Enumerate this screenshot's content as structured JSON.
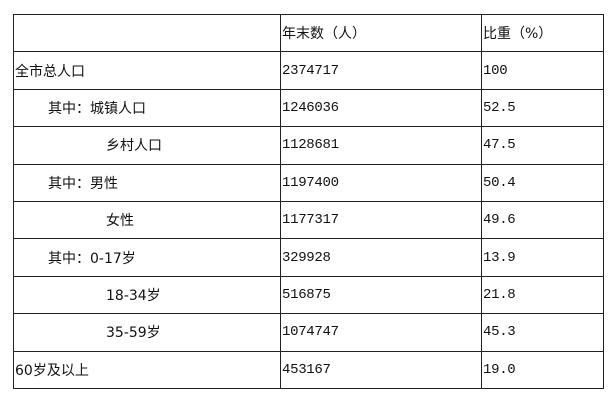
{
  "table": {
    "headers": [
      "",
      "年末数（人）",
      "比重（%）"
    ],
    "rows": [
      {
        "label": "全市总人口",
        "indent": 0,
        "count": "2374717",
        "share": "100"
      },
      {
        "label": "其中：城镇人口",
        "indent": 1,
        "count": "1246036",
        "share": "52.5"
      },
      {
        "label": "乡村人口",
        "indent": 2,
        "count": "1128681",
        "share": "47.5"
      },
      {
        "label": "其中：男性",
        "indent": 1,
        "count": "1197400",
        "share": "50.4"
      },
      {
        "label": "女性",
        "indent": 2,
        "count": "1177317",
        "share": "49.6"
      },
      {
        "label": "其中：0-17岁",
        "indent": 1,
        "count": "329928",
        "share": "13.9"
      },
      {
        "label": "18-34岁",
        "indent": 2,
        "count": "516875",
        "share": "21.8"
      },
      {
        "label": "35-59岁",
        "indent": 2,
        "count": "1074747",
        "share": "45.3"
      },
      {
        "label": "60岁及以上",
        "indent": 0,
        "count": "453167",
        "share": "19.0"
      }
    ]
  }
}
